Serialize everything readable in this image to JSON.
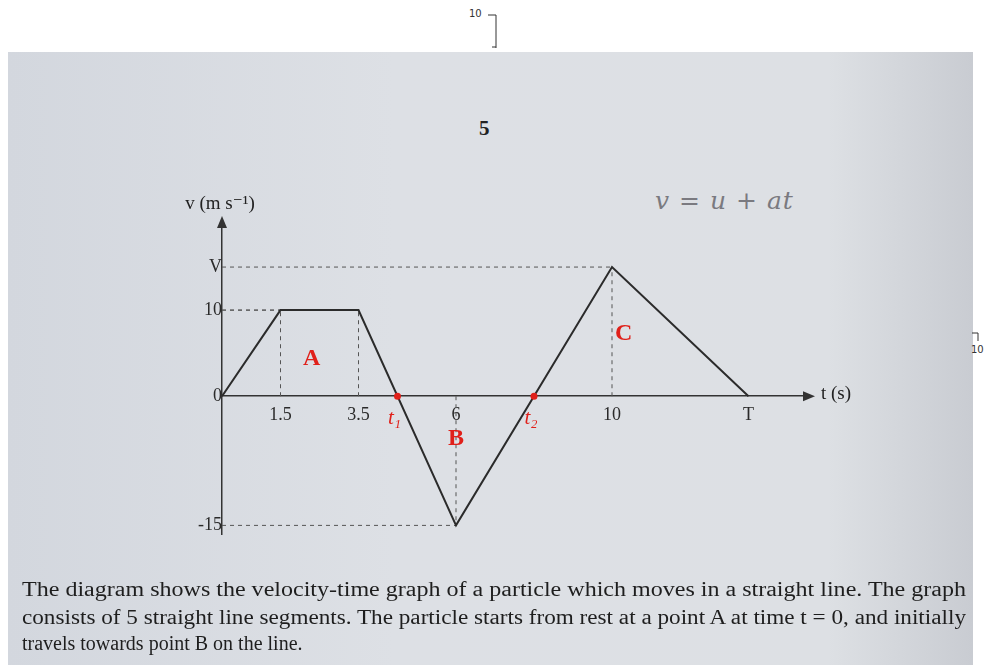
{
  "page_number": "5",
  "margin_labels": [
    "10",
    "10"
  ],
  "handwriting": "v = u + at",
  "chart_data": {
    "type": "line",
    "x_label": "t (s)",
    "y_label": "v (m s⁻¹)",
    "x": [
      0,
      1.5,
      3.5,
      6,
      10,
      13.5
    ],
    "values": [
      0,
      10,
      10,
      -15,
      15,
      0
    ],
    "color": "#2b2b2b",
    "xlim": [
      0,
      15
    ],
    "ylim": [
      -16,
      20
    ],
    "xticks": [
      1.5,
      3.5,
      6,
      10,
      {
        "value": 13.5,
        "label": "T"
      }
    ],
    "yticks": [
      -15,
      0,
      10,
      {
        "value": 15,
        "label": "V"
      }
    ],
    "grid": false,
    "annotations": [
      {
        "text": "A",
        "x": 2.3,
        "y": 4.4,
        "color": "#e0201a"
      },
      {
        "text": "B",
        "x": 6,
        "y": -4.9,
        "color": "#e0201a"
      },
      {
        "text": "C",
        "x": 10.3,
        "y": 7.2,
        "color": "#e0201a"
      }
    ],
    "points": [
      {
        "text": "t₁",
        "x": 4.5,
        "y": 0,
        "color": "#e0201a"
      },
      {
        "text": "t₂",
        "x": 8,
        "y": 0,
        "color": "#e0201a"
      }
    ]
  },
  "caption_lines": [
    "The diagram shows the velocity-time graph of a particle which moves in a straight line. The graph",
    "consists of 5 straight line segments. The particle starts from rest at a point A at time t = 0, and initially",
    "travels towards point B on the line."
  ]
}
